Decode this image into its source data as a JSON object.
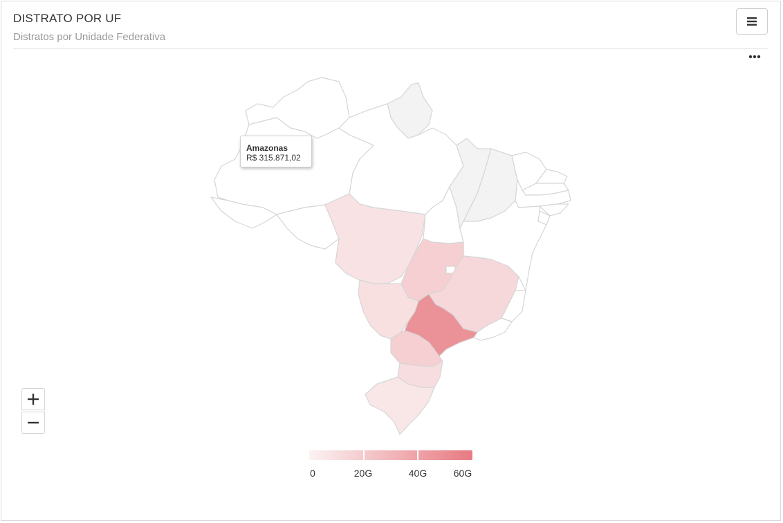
{
  "header": {
    "title": "DISTRATO POR UF",
    "subtitle": "Distratos por Unidade Federativa"
  },
  "toolbar": {
    "menu_icon": "hamburger-icon",
    "more_icon": "ellipsis-icon"
  },
  "tooltip": {
    "state": "Amazonas",
    "value": "R$ 315.871,02"
  },
  "zoom": {
    "in_icon": "plus-icon",
    "out_icon": "minus-icon"
  },
  "legend": {
    "labels": [
      "0",
      "20G",
      "40G",
      "60G"
    ],
    "color_min": "#fbf3f3",
    "color_max": "#e77a82"
  },
  "chart_data": {
    "type": "choropleth",
    "region": "Brasil",
    "color_scale": [
      "#fbf3f3",
      "#e77a82"
    ],
    "scale_range": [
      0,
      60000000000
    ],
    "regions": [
      {
        "name": "Amazonas",
        "value": 315871.02,
        "shade": 0.0
      },
      {
        "name": "Roraima",
        "shade": 0.0
      },
      {
        "name": "Amapá",
        "shade": 0.08
      },
      {
        "name": "Pará",
        "shade": 0.0
      },
      {
        "name": "Acre",
        "shade": 0.0
      },
      {
        "name": "Rondônia",
        "shade": 0.0
      },
      {
        "name": "Mato Grosso",
        "shade": 0.14
      },
      {
        "name": "Tocantins",
        "shade": 0.0
      },
      {
        "name": "Maranhão",
        "shade": 0.08
      },
      {
        "name": "Piauí",
        "shade": 0.08
      },
      {
        "name": "Ceará",
        "shade": 0.0
      },
      {
        "name": "Rio Grande do Norte",
        "shade": 0.0
      },
      {
        "name": "Paraíba",
        "shade": 0.0
      },
      {
        "name": "Pernambuco",
        "shade": 0.0
      },
      {
        "name": "Alagoas",
        "shade": 0.0
      },
      {
        "name": "Sergipe",
        "shade": 0.0
      },
      {
        "name": "Bahia",
        "shade": 0.0
      },
      {
        "name": "Goiás",
        "shade": 0.3
      },
      {
        "name": "Distrito Federal",
        "shade": 0.0
      },
      {
        "name": "Minas Gerais",
        "shade": 0.22
      },
      {
        "name": "Espírito Santo",
        "shade": 0.0
      },
      {
        "name": "Mato Grosso do Sul",
        "shade": 0.16
      },
      {
        "name": "São Paulo",
        "shade": 0.8
      },
      {
        "name": "Rio de Janeiro",
        "shade": 0.0
      },
      {
        "name": "Paraná",
        "shade": 0.3
      },
      {
        "name": "Santa Catarina",
        "shade": 0.18
      },
      {
        "name": "Rio Grande do Sul",
        "shade": 0.1
      }
    ]
  }
}
